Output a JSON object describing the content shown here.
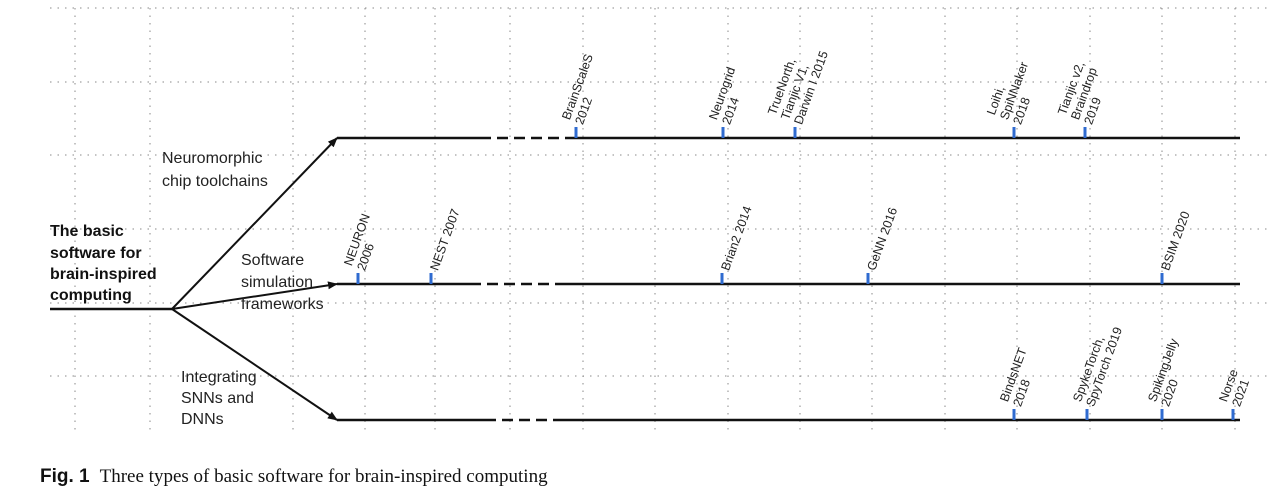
{
  "diagram": {
    "root": [
      "The basic",
      "software for",
      "brain-inspired",
      "computing"
    ],
    "branches": [
      {
        "label": [
          "Neuromorphic",
          "chip toolchains"
        ],
        "events": [
          {
            "lines": [
              "BrainScaleS",
              "2012"
            ]
          },
          {
            "lines": [
              "Neurogrid",
              "2014"
            ]
          },
          {
            "lines": [
              "TrueNorth,",
              "Tianjic V1,",
              "Darwin I 2015"
            ]
          },
          {
            "lines": [
              "Loihi,",
              "SpiNNaker",
              "2018"
            ]
          },
          {
            "lines": [
              "Tianjic v2,",
              "Braindrop",
              "2019"
            ]
          }
        ]
      },
      {
        "label": [
          "Software",
          "simulation",
          "frameworks"
        ],
        "events": [
          {
            "lines": [
              "NEURON",
              "2006"
            ]
          },
          {
            "lines": [
              "NEST 2007"
            ]
          },
          {
            "lines": [
              "Brian2 2014"
            ]
          },
          {
            "lines": [
              "GeNN 2016"
            ]
          },
          {
            "lines": [
              "BSIM 2020"
            ]
          }
        ]
      },
      {
        "label": [
          "Integrating",
          "SNNs and",
          "DNNs"
        ],
        "events": [
          {
            "lines": [
              "BindsNET",
              "2018"
            ]
          },
          {
            "lines": [
              "SpykeTorch,",
              "SpyTorch 2019"
            ]
          },
          {
            "lines": [
              "SpikingJelly",
              "2020"
            ]
          },
          {
            "lines": [
              "Norse",
              "2021"
            ]
          }
        ]
      }
    ],
    "tick_color": "#2f6bd0"
  },
  "caption": {
    "label": "Fig. 1",
    "text": "Three types of basic software for brain-inspired computing"
  }
}
